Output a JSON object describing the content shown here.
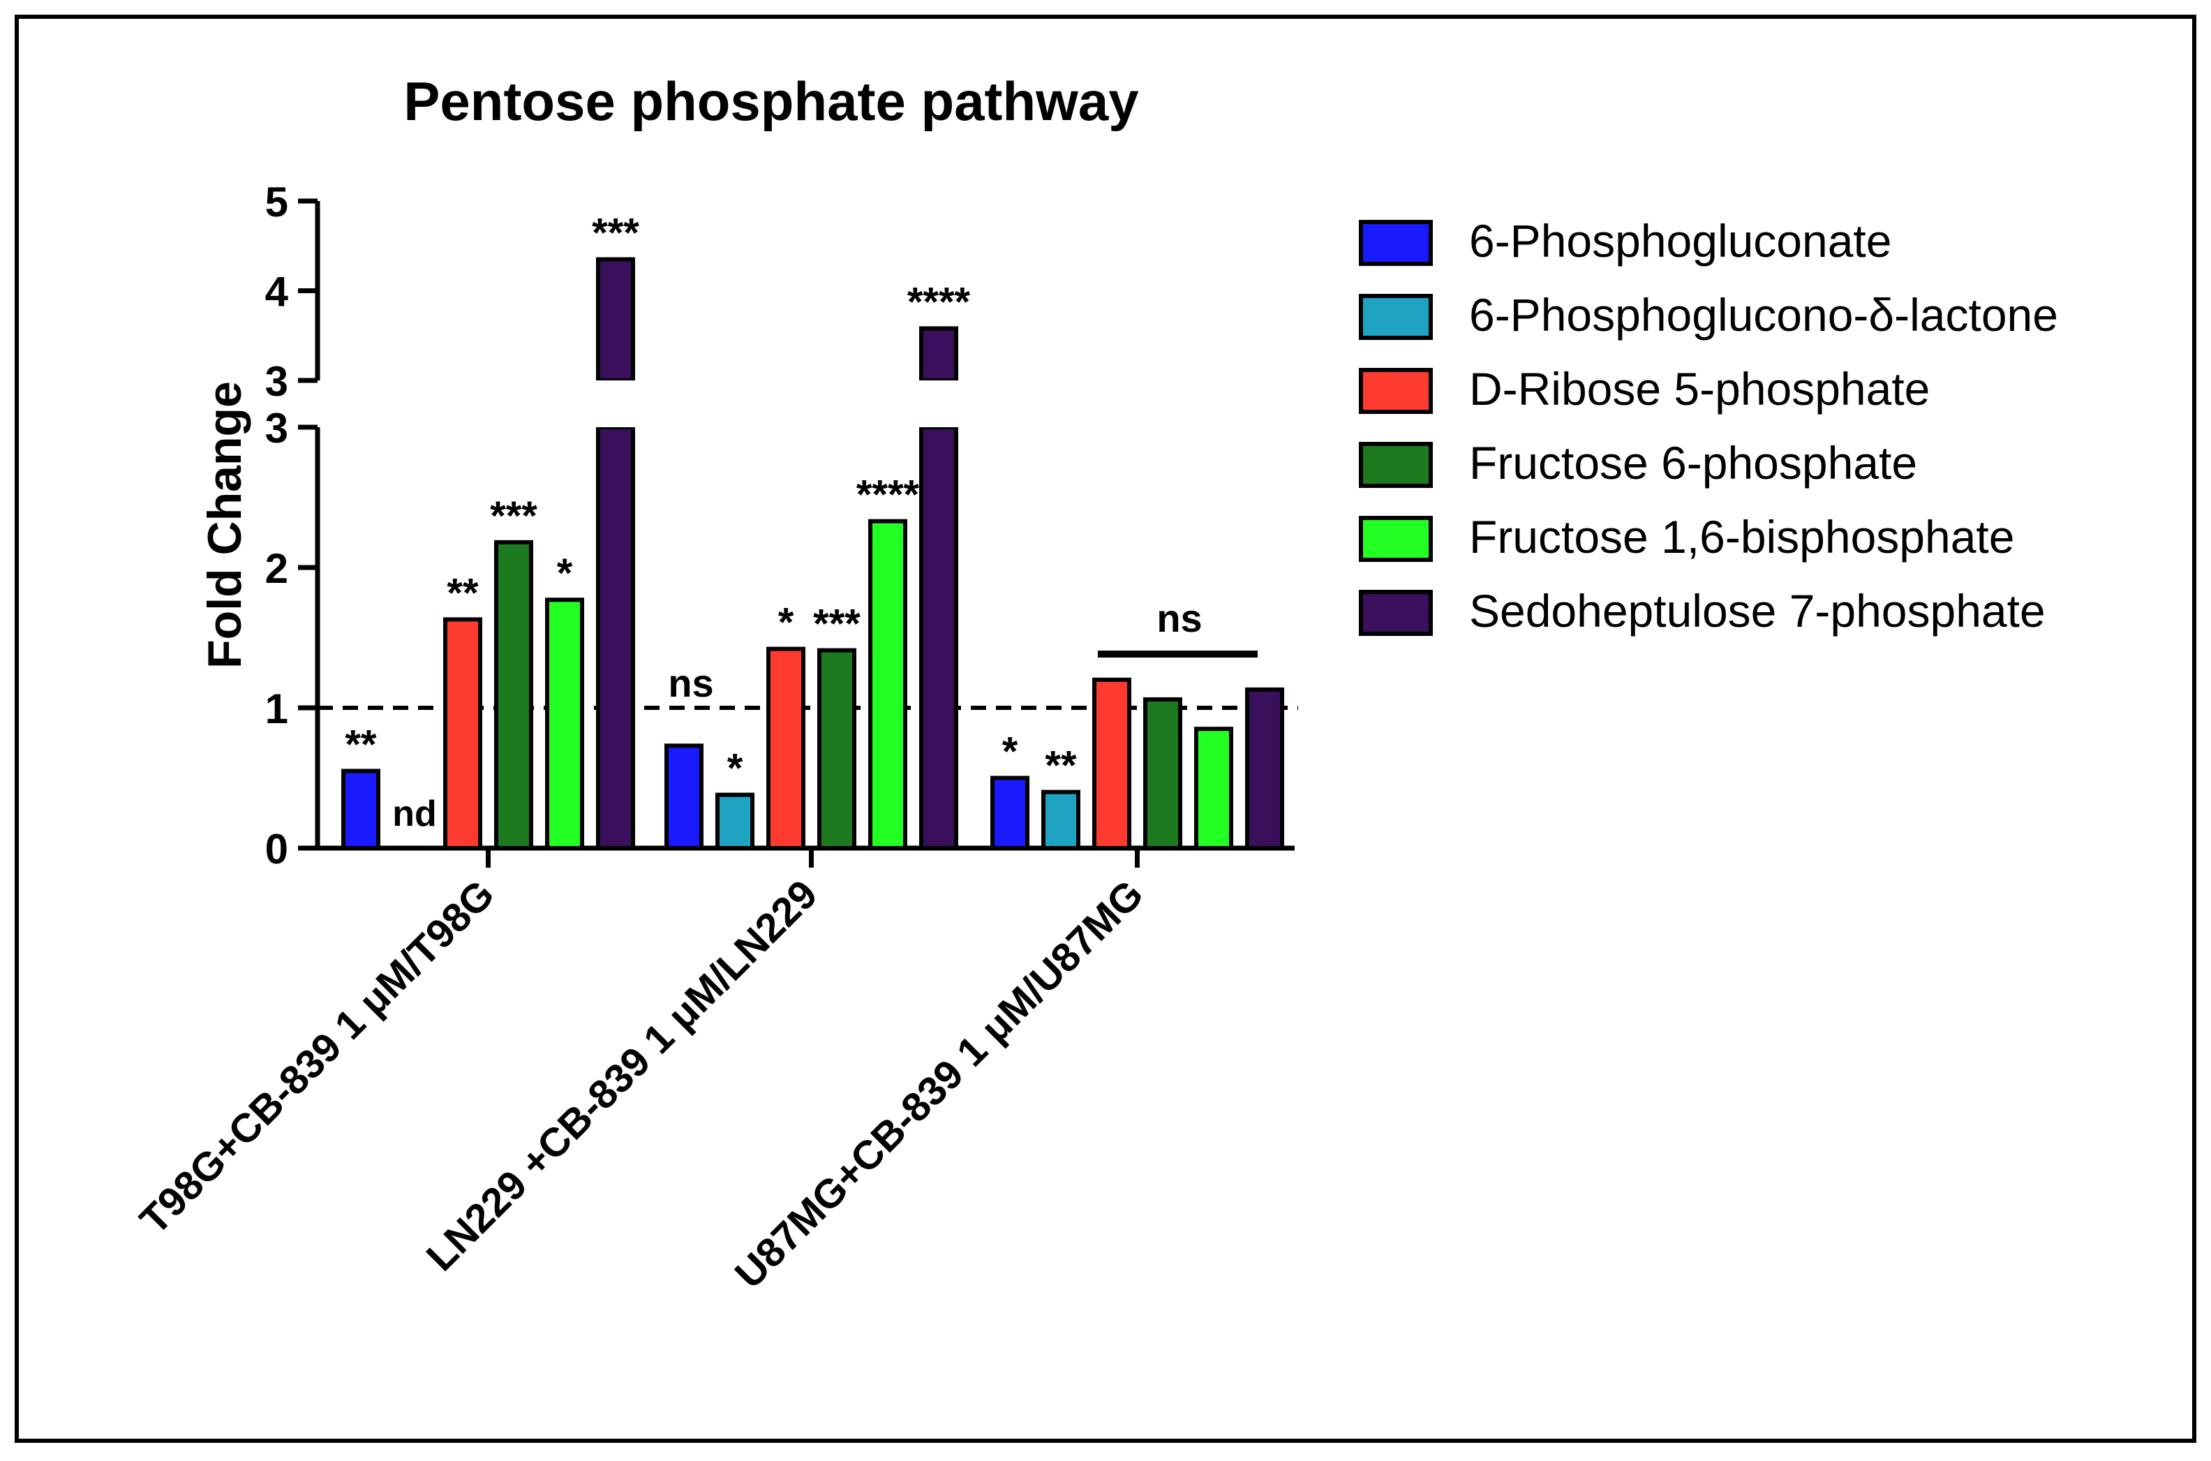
{
  "chart_data": {
    "type": "bar",
    "title": "Pentose phosphate pathway",
    "ylabel": "Fold Change",
    "xlabel": "",
    "axis_break": {
      "lower_range": [
        0,
        3
      ],
      "upper_range": [
        3,
        5
      ]
    },
    "lower_ticks": [
      "0",
      "1",
      "2",
      "3"
    ],
    "upper_ticks": [
      "3",
      "4",
      "5"
    ],
    "reference_line": {
      "y": 1,
      "style": "dashed"
    },
    "grid": false,
    "legend_position": "right",
    "categories": [
      "T98G+CB-839 1 μM/T98G",
      "LN229 +CB-839 1 μM/LN229",
      "U87MG+CB-839 1  μM/U87MG"
    ],
    "series": [
      {
        "name": "6-Phosphogluconate",
        "color": "#1a1aff",
        "values": [
          0.55,
          0.73,
          0.5
        ],
        "labels": [
          "**",
          "",
          "*"
        ]
      },
      {
        "name": "6-Phosphoglucono-δ-lactone",
        "color": "#1fa3c2",
        "values": [
          null,
          0.38,
          0.4
        ],
        "labels": [
          "nd",
          "*",
          "**"
        ]
      },
      {
        "name": "D-Ribose 5-phosphate",
        "color": "#ff3b30",
        "values": [
          1.63,
          1.42,
          1.2
        ],
        "labels": [
          "**",
          "*",
          ""
        ]
      },
      {
        "name": "Fructose 6-phosphate",
        "color": "#1e7a1e",
        "values": [
          2.18,
          1.41,
          1.06
        ],
        "labels": [
          "***",
          "***",
          ""
        ]
      },
      {
        "name": "Fructose 1,6-bisphosphate",
        "color": "#22ff22",
        "values": [
          1.77,
          2.33,
          0.85
        ],
        "labels": [
          "*",
          "****",
          ""
        ]
      },
      {
        "name": "Sedoheptulose 7-phosphate",
        "color": "#3a0f5c",
        "values": [
          4.35,
          3.58,
          1.13
        ],
        "labels": [
          "***",
          "****",
          ""
        ]
      }
    ],
    "group_annotations": [
      "ns",
      "ns"
    ]
  }
}
